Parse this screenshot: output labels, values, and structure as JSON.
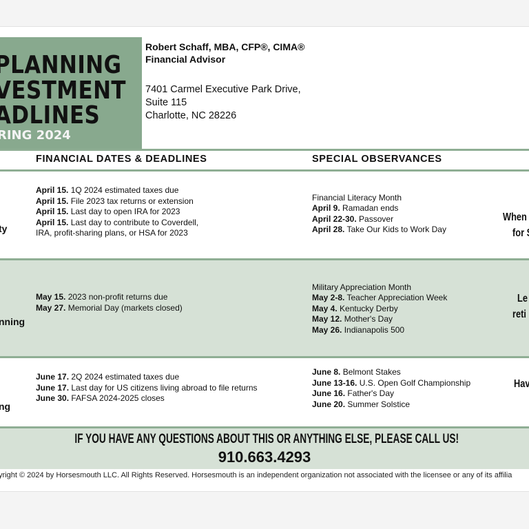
{
  "title": {
    "lines": [
      "PLANNING",
      "VESTMENT",
      "ADLINES"
    ],
    "season": "RING 2024"
  },
  "advisor": {
    "name": "Robert Schaff, MBA, CFP®, CIMA®",
    "role": "Financial Advisor",
    "address": [
      "7401 Carmel Executive Park Drive,",
      "Suite 115",
      "Charlotte, NC  28226"
    ]
  },
  "columns": {
    "deadlines": "FINANCIAL DATES & DEADLINES",
    "observances": "SPECIAL OBSERVANCES"
  },
  "rows": [
    {
      "left": "ty",
      "deadlines": [
        {
          "date": "April 15.",
          "text": "1Q 2024 estimated taxes due"
        },
        {
          "date": "April 15.",
          "text": "File 2023 tax returns or extension"
        },
        {
          "date": "April 15.",
          "text": "Last day to open IRA for 2023"
        },
        {
          "date": "April 15.",
          "text": "Last day to contribute to Coverdell, IRA, profit-sharing plans, or HSA for 2023"
        }
      ],
      "observance_intro": "Financial Literacy Month",
      "observances": [
        {
          "date": "April 9.",
          "text": "Ramadan ends"
        },
        {
          "date": "April 22-30.",
          "text": "Passover"
        },
        {
          "date": "April 28.",
          "text": "Take Our Kids to Work Day"
        }
      ],
      "right": [
        "When",
        "for S"
      ]
    },
    {
      "left": "nning",
      "deadlines": [
        {
          "date": "May 15.",
          "text": "2023 non-profit returns due"
        },
        {
          "date": "May 27.",
          "text": "Memorial Day (markets closed)"
        }
      ],
      "observance_intro": "Military Appreciation Month",
      "observances": [
        {
          "date": "May 2-8.",
          "text": "Teacher Appreciation Week"
        },
        {
          "date": "May 4.",
          "text": "Kentucky Derby"
        },
        {
          "date": "May 12.",
          "text": "Mother's Day"
        },
        {
          "date": "May 26.",
          "text": "Indianapolis 500"
        }
      ],
      "right": [
        "Le",
        "reti"
      ]
    },
    {
      "left": "ng",
      "deadlines": [
        {
          "date": "June 17.",
          "text": "2Q 2024 estimated taxes due"
        },
        {
          "date": "June 17.",
          "text": "Last day for US citizens living abroad to file returns"
        },
        {
          "date": "June 30.",
          "text": "FAFSA 2024-2025 closes"
        }
      ],
      "observances": [
        {
          "date": "June 8.",
          "text": "Belmont Stakes"
        },
        {
          "date": "June 13-16.",
          "text": "U.S. Open Golf Championship"
        },
        {
          "date": "June 16.",
          "text": "Father's Day"
        },
        {
          "date": "June 20.",
          "text": "Summer Solstice"
        }
      ],
      "right": [
        "Hav"
      ]
    }
  ],
  "footer": {
    "cta": "IF YOU HAVE ANY QUESTIONS ABOUT THIS OR ANYTHING ELSE, PLEASE CALL US!",
    "phone": "910.663.4293",
    "copyright": "yright © 2024 by Horsesmouth LLC. All Rights Reserved. Horsesmouth is an independent organization not associated with the licensee or any of its affilia"
  },
  "colors": {
    "title_green": "#88a98e",
    "band_green": "#d6e1d6",
    "rule_green": "#8fae94"
  }
}
